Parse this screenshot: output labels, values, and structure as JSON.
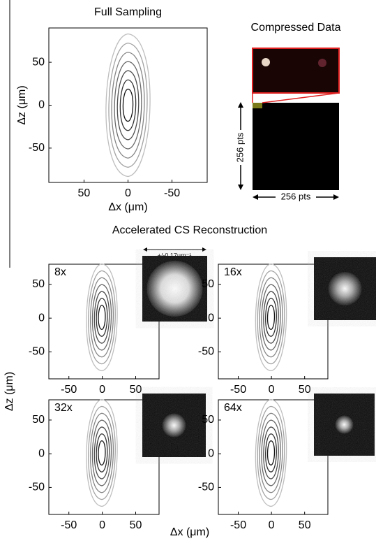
{
  "chart_data": [
    {
      "type": "contour",
      "title": "Full Sampling",
      "x_label": "Δx (μm)",
      "y_label": "Δz (μm)",
      "xlim": [
        90,
        -90
      ],
      "ylim": [
        -90,
        90
      ],
      "xticks": [
        50,
        0,
        -50
      ],
      "yticks": [
        50,
        0,
        -50
      ]
    },
    {
      "type": "contour",
      "label": "8x",
      "xlim": [
        -80,
        85
      ],
      "ylim": [
        -90,
        80
      ],
      "xticks": [
        -50,
        0,
        50
      ],
      "yticks": [
        50,
        0,
        -50
      ]
    },
    {
      "type": "contour",
      "label": "16x",
      "xlim": [
        -80,
        85
      ],
      "ylim": [
        -90,
        80
      ],
      "xticks": [
        -50,
        0,
        50
      ],
      "yticks": [
        50,
        0,
        -50
      ]
    },
    {
      "type": "contour",
      "label": "32x",
      "xlim": [
        -80,
        85
      ],
      "ylim": [
        -90,
        80
      ],
      "xticks": [
        -50,
        0,
        50
      ],
      "yticks": [
        50,
        0,
        -50
      ]
    },
    {
      "type": "contour",
      "label": "64x",
      "xlim": [
        -80,
        85
      ],
      "ylim": [
        -90,
        80
      ],
      "xticks": [
        -50,
        0,
        50
      ],
      "yticks": [
        50,
        0,
        -50
      ]
    }
  ],
  "compressed": {
    "title": "Compressed Data",
    "height_label": "256 pts",
    "width_label": "256 pts"
  },
  "reconstruction": {
    "title": "Accelerated CS Reconstruction",
    "scale_label": "+/-0.17μm⁻¹",
    "x_label": "Δx (μm)",
    "y_label": "Δz (μm)"
  }
}
